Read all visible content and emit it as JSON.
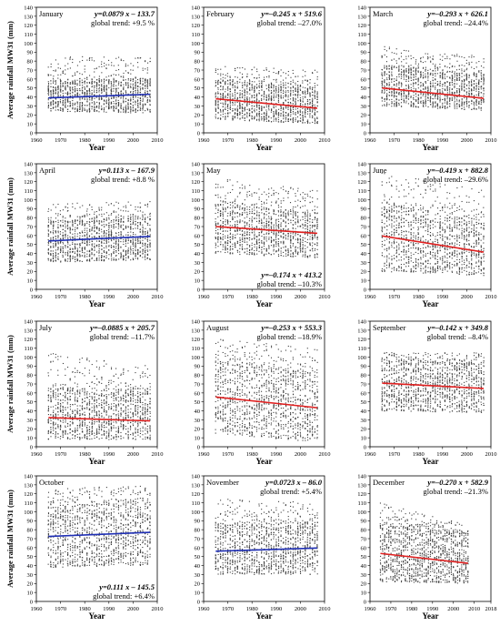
{
  "chart_data": [
    {
      "type": "scatter",
      "title": "January",
      "equation": "y=0.0879 x – 133.7",
      "trend_label": "global trend: +9.5 %",
      "trend_direction": "up",
      "trend_color": "#1f2fb5",
      "label_position": "top",
      "xlabel": "Year",
      "ylabel": "Average rainfall MW31 (mm)",
      "xlim": [
        1960,
        2010
      ],
      "ylim": [
        0,
        140
      ],
      "xticks": [
        1960,
        1970,
        1980,
        1990,
        2000,
        2010
      ],
      "yticks": [
        0,
        10,
        20,
        30,
        40,
        50,
        60,
        70,
        80,
        90,
        100,
        110,
        120,
        130,
        140
      ],
      "x_range": [
        1965,
        2007
      ],
      "scatter_low": [
        24,
        22
      ],
      "scatter_dense_high": [
        58,
        60
      ],
      "scatter_sparse_high": [
        85,
        85
      ],
      "trend_line": {
        "x": [
          1965,
          2007
        ],
        "y": [
          39.0,
          43.0
        ]
      }
    },
    {
      "type": "scatter",
      "title": "February",
      "equation": "y=–0.245 x + 519.6",
      "trend_label": "global trend: –27.0%",
      "trend_direction": "down",
      "trend_color": "#e02020",
      "label_position": "top",
      "xlabel": "Year",
      "ylabel": "",
      "xlim": [
        1960,
        2010
      ],
      "ylim": [
        0,
        140
      ],
      "xticks": [
        1960,
        1970,
        1980,
        1990,
        2000,
        2010
      ],
      "yticks": [
        0,
        10,
        20,
        30,
        40,
        50,
        60,
        70,
        80,
        90,
        100,
        110,
        120,
        130,
        140
      ],
      "x_range": [
        1965,
        2007
      ],
      "scatter_low": [
        15,
        10
      ],
      "scatter_dense_high": [
        58,
        50
      ],
      "scatter_sparse_high": [
        75,
        70
      ],
      "trend_line": {
        "x": [
          1965,
          2007
        ],
        "y": [
          38.0,
          27.5
        ]
      }
    },
    {
      "type": "scatter",
      "title": "March",
      "equation": "y=–0.293 x + 626.1",
      "trend_label": "global trend: –24.4%",
      "trend_direction": "down",
      "trend_color": "#e02020",
      "label_position": "top",
      "xlabel": "Year",
      "ylabel": "",
      "xlim": [
        1960,
        2010
      ],
      "ylim": [
        0,
        140
      ],
      "xticks": [
        1960,
        1970,
        1980,
        1990,
        2000,
        2010
      ],
      "yticks": [
        0,
        10,
        20,
        30,
        40,
        50,
        60,
        70,
        80,
        90,
        100,
        110,
        120,
        130,
        140
      ],
      "x_range": [
        1965,
        2007
      ],
      "scatter_low": [
        30,
        25
      ],
      "scatter_dense_high": [
        75,
        65
      ],
      "scatter_sparse_high": [
        97,
        85
      ],
      "trend_line": {
        "x": [
          1965,
          2007
        ],
        "y": [
          50.0,
          38.5
        ]
      }
    },
    {
      "type": "scatter",
      "title": "April",
      "equation": "y=0.113 x – 167.9",
      "trend_label": "global trend: +8.8 %",
      "trend_direction": "up",
      "trend_color": "#1f2fb5",
      "label_position": "top",
      "xlabel": "Year",
      "ylabel": "Average rainfall MW31 (mm)",
      "xlim": [
        1960,
        2010
      ],
      "ylim": [
        0,
        140
      ],
      "xticks": [
        1960,
        1970,
        1980,
        1990,
        2000,
        2010
      ],
      "yticks": [
        0,
        10,
        20,
        30,
        40,
        50,
        60,
        70,
        80,
        90,
        100,
        110,
        120,
        130,
        140
      ],
      "x_range": [
        1965,
        2007
      ],
      "scatter_low": [
        30,
        33
      ],
      "scatter_dense_high": [
        75,
        80
      ],
      "scatter_sparse_high": [
        95,
        100
      ],
      "trend_line": {
        "x": [
          1965,
          2007
        ],
        "y": [
          54.0,
          59.0
        ]
      }
    },
    {
      "type": "scatter",
      "title": "May",
      "equation": "y=–0.174 x + 413.2",
      "trend_label": "global trend: –10.3%",
      "trend_direction": "down",
      "trend_color": "#e02020",
      "label_position": "bottom",
      "xlabel": "Year",
      "ylabel": "",
      "xlim": [
        1960,
        2010
      ],
      "ylim": [
        0,
        140
      ],
      "xticks": [
        1960,
        1970,
        1980,
        1990,
        2000,
        2010
      ],
      "yticks": [
        0,
        10,
        20,
        30,
        40,
        50,
        60,
        70,
        80,
        90,
        100,
        110,
        120,
        130,
        140
      ],
      "x_range": [
        1965,
        2007
      ],
      "scatter_low": [
        40,
        35
      ],
      "scatter_dense_high": [
        95,
        85
      ],
      "scatter_sparse_high": [
        125,
        110
      ],
      "trend_line": {
        "x": [
          1965,
          2007
        ],
        "y": [
          70.0,
          62.5
        ]
      }
    },
    {
      "type": "scatter",
      "title": "June",
      "equation": "y=–0.419 x + 882.8",
      "trend_label": "global trend: –29.6%",
      "trend_direction": "down",
      "trend_color": "#e02020",
      "label_position": "top",
      "xlabel": "Year",
      "ylabel": "",
      "xlim": [
        1960,
        2010
      ],
      "ylim": [
        0,
        140
      ],
      "xticks": [
        1960,
        1970,
        1980,
        1990,
        2000,
        2010
      ],
      "yticks": [
        0,
        10,
        20,
        30,
        40,
        50,
        60,
        70,
        80,
        90,
        100,
        110,
        120,
        130,
        140
      ],
      "x_range": [
        1965,
        2007
      ],
      "scatter_low": [
        20,
        15
      ],
      "scatter_dense_high": [
        95,
        75
      ],
      "scatter_sparse_high": [
        130,
        110
      ],
      "trend_line": {
        "x": [
          1965,
          2007
        ],
        "y": [
          59.5,
          41.5
        ]
      }
    },
    {
      "type": "scatter",
      "title": "July",
      "equation": "y=–0.0885 x + 205.7",
      "trend_label": "global trend: –11.7%",
      "trend_direction": "down",
      "trend_color": "#e02020",
      "label_position": "top",
      "xlabel": "Year",
      "ylabel": "Average rainfall MW31 (mm)",
      "xlim": [
        1960,
        2010
      ],
      "ylim": [
        0,
        140
      ],
      "xticks": [
        1960,
        1970,
        1980,
        1990,
        2000,
        2010
      ],
      "yticks": [
        0,
        10,
        20,
        30,
        40,
        50,
        60,
        70,
        80,
        90,
        100,
        110,
        120,
        130,
        140
      ],
      "x_range": [
        1965,
        2007
      ],
      "scatter_low": [
        8,
        8
      ],
      "scatter_dense_high": [
        65,
        62
      ],
      "scatter_sparse_high": [
        105,
        90
      ],
      "trend_line": {
        "x": [
          1965,
          2007
        ],
        "y": [
          32.5,
          28.8
        ]
      }
    },
    {
      "type": "scatter",
      "title": "August",
      "equation": "y=–0.253 x + 553.3",
      "trend_label": "global trend: –18.9%",
      "trend_direction": "down",
      "trend_color": "#e02020",
      "label_position": "top",
      "xlabel": "Year",
      "ylabel": "",
      "xlim": [
        1960,
        2010
      ],
      "ylim": [
        0,
        140
      ],
      "xticks": [
        1960,
        1970,
        1980,
        1990,
        2000,
        2010
      ],
      "yticks": [
        0,
        10,
        20,
        30,
        40,
        50,
        60,
        70,
        80,
        90,
        100,
        110,
        120,
        130,
        140
      ],
      "x_range": [
        1965,
        2007
      ],
      "scatter_low": [
        15,
        5
      ],
      "scatter_dense_high": [
        95,
        80
      ],
      "scatter_sparse_high": [
        120,
        110
      ],
      "trend_line": {
        "x": [
          1965,
          2007
        ],
        "y": [
          55.5,
          43.5
        ]
      }
    },
    {
      "type": "scatter",
      "title": "September",
      "equation": "y=–0.142 x + 349.8",
      "trend_label": "global trend: –8.4%",
      "trend_direction": "down",
      "trend_color": "#e02020",
      "label_position": "top",
      "xlabel": "Year",
      "ylabel": "",
      "xlim": [
        1960,
        2010
      ],
      "ylim": [
        0,
        140
      ],
      "xticks": [
        1960,
        1970,
        1980,
        1990,
        2000,
        2010
      ],
      "yticks": [
        0,
        10,
        20,
        30,
        40,
        50,
        60,
        70,
        80,
        90,
        100,
        110,
        120,
        130,
        140
      ],
      "x_range": [
        1965,
        2007
      ],
      "scatter_low": [
        40,
        38
      ],
      "scatter_dense_high": [
        95,
        92
      ],
      "scatter_sparse_high": [
        105,
        105
      ],
      "trend_line": {
        "x": [
          1965,
          2007
        ],
        "y": [
          71.0,
          65.0
        ]
      }
    },
    {
      "type": "scatter",
      "title": "October",
      "equation": "y=0.111 x – 145.5",
      "trend_label": "global trend: +6.4%",
      "trend_direction": "up",
      "trend_color": "#1f2fb5",
      "label_position": "bottom",
      "xlabel": "Year",
      "ylabel": "Average rainfall MW31 (mm)",
      "xlim": [
        1960,
        2010
      ],
      "ylim": [
        0,
        140
      ],
      "xticks": [
        1960,
        1970,
        1980,
        1990,
        2000,
        2010
      ],
      "yticks": [
        0,
        10,
        20,
        30,
        40,
        50,
        60,
        70,
        80,
        90,
        100,
        110,
        120,
        130,
        140
      ],
      "x_range": [
        1965,
        2007
      ],
      "scatter_low": [
        38,
        40
      ],
      "scatter_dense_high": [
        105,
        110
      ],
      "scatter_sparse_high": [
        125,
        130
      ],
      "trend_line": {
        "x": [
          1965,
          2007
        ],
        "y": [
          72.5,
          77.0
        ]
      }
    },
    {
      "type": "scatter",
      "title": "November",
      "equation": "y=0.0723 x – 86.0",
      "trend_label": "global trend: +5.4%",
      "trend_direction": "up",
      "trend_color": "#1f2fb5",
      "label_position": "top",
      "xlabel": "Year",
      "ylabel": "",
      "xlim": [
        1960,
        2010
      ],
      "ylim": [
        0,
        140
      ],
      "xticks": [
        1960,
        1970,
        1980,
        1990,
        2000,
        2010
      ],
      "yticks": [
        0,
        10,
        20,
        30,
        40,
        50,
        60,
        70,
        80,
        90,
        100,
        110,
        120,
        130,
        140
      ],
      "x_range": [
        1965,
        2007
      ],
      "scatter_low": [
        30,
        30
      ],
      "scatter_dense_high": [
        85,
        88
      ],
      "scatter_sparse_high": [
        115,
        110
      ],
      "trend_line": {
        "x": [
          1965,
          2007
        ],
        "y": [
          56.0,
          59.5
        ]
      }
    },
    {
      "type": "scatter",
      "title": "December",
      "equation": "y=–0.270 x + 582.9",
      "trend_label": "global trend: –21.3%",
      "trend_direction": "down",
      "trend_color": "#e02020",
      "label_position": "top",
      "xlabel": "Year",
      "ylabel": "",
      "xlim": [
        1960,
        2018
      ],
      "ylim": [
        0,
        140
      ],
      "xticks": [
        1960,
        1970,
        1980,
        1990,
        2000,
        2010,
        2018
      ],
      "yticks": [
        0,
        10,
        20,
        30,
        40,
        50,
        60,
        70,
        80,
        90,
        100,
        110,
        120,
        130,
        140
      ],
      "x_range": [
        1965,
        2007
      ],
      "scatter_low": [
        22,
        20
      ],
      "scatter_dense_high": [
        85,
        75
      ],
      "scatter_sparse_high": [
        110,
        85
      ],
      "trend_line": {
        "x": [
          1965,
          2007
        ],
        "y": [
          53.5,
          42.5
        ]
      }
    }
  ]
}
